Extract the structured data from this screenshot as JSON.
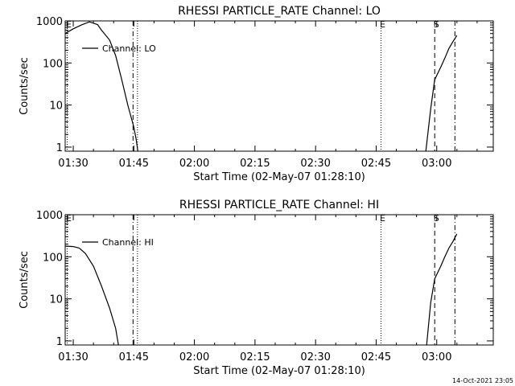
{
  "footer_timestamp": "14-Oct-2021 23:05",
  "chart_data": [
    {
      "type": "line",
      "title": "RHESSI PARTICLE_RATE Channel: LO",
      "xlabel": "Start Time (02-May-07 01:28:10)",
      "ylabel": "Counts/sec",
      "yscale": "log",
      "xlim_minutes_after_0130": [
        -2,
        104
      ],
      "ylim": [
        0.8,
        1000
      ],
      "x_tick_labels": [
        "01:30",
        "01:45",
        "02:00",
        "02:15",
        "02:30",
        "02:45",
        "03:00"
      ],
      "y_tick_labels": [
        "1",
        "10",
        "100",
        "1000"
      ],
      "legend": {
        "label": "Channel: LO",
        "position": "top-left"
      },
      "series": [
        {
          "x": [
            -2,
            0,
            2,
            4,
            6,
            7,
            9,
            10.5,
            12,
            13.5,
            15,
            15.6,
            16
          ],
          "y": [
            500,
            650,
            800,
            950,
            820,
            600,
            350,
            150,
            40,
            10,
            3,
            1.5,
            0.8
          ]
        },
        {
          "x": [
            87.3,
            88.5,
            89.5,
            91,
            92,
            93,
            94,
            95
          ],
          "y": [
            0.8,
            8,
            40,
            80,
            130,
            220,
            320,
            450
          ]
        }
      ],
      "markers": [
        {
          "label": "E",
          "x": -1.5,
          "style": "dotted"
        },
        {
          "label": "",
          "x": 14.8,
          "style": "dash-dot"
        },
        {
          "label": "",
          "x": 15.9,
          "style": "dotted"
        },
        {
          "label": "E",
          "x": 76.2,
          "style": "dotted"
        },
        {
          "label": "S",
          "x": 89.5,
          "style": "dashed"
        },
        {
          "label": "",
          "x": 94.5,
          "style": "dash-dot"
        }
      ]
    },
    {
      "type": "line",
      "title": "RHESSI PARTICLE_RATE Channel: HI",
      "xlabel": "Start Time (02-May-07 01:28:10)",
      "ylabel": "Counts/sec",
      "yscale": "log",
      "xlim_minutes_after_0130": [
        -2,
        104
      ],
      "ylim": [
        0.8,
        1000
      ],
      "x_tick_labels": [
        "01:30",
        "01:45",
        "02:00",
        "02:15",
        "02:30",
        "02:45",
        "03:00"
      ],
      "y_tick_labels": [
        "1",
        "10",
        "100",
        "1000"
      ],
      "legend": {
        "label": "Channel: HI",
        "position": "top-left"
      },
      "series": [
        {
          "x": [
            -2,
            0,
            1.5,
            3,
            5,
            7,
            9,
            10.5,
            11.2
          ],
          "y": [
            180,
            175,
            160,
            120,
            60,
            20,
            6,
            2,
            0.8
          ]
        },
        {
          "x": [
            87.5,
            88.5,
            89.5,
            91,
            92,
            93,
            94,
            95
          ],
          "y": [
            0.8,
            8,
            30,
            60,
            100,
            160,
            230,
            350
          ]
        }
      ],
      "markers": [
        {
          "label": "E",
          "x": -1.5,
          "style": "dotted"
        },
        {
          "label": "",
          "x": 14.8,
          "style": "dash-dot"
        },
        {
          "label": "",
          "x": 15.9,
          "style": "dotted"
        },
        {
          "label": "E",
          "x": 76.2,
          "style": "dotted"
        },
        {
          "label": "S",
          "x": 89.5,
          "style": "dashed"
        },
        {
          "label": "",
          "x": 94.5,
          "style": "dash-dot"
        }
      ]
    }
  ]
}
